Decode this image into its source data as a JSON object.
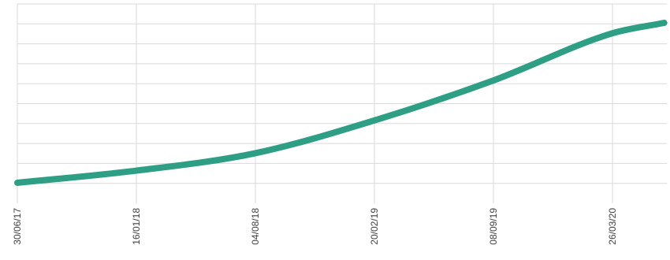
{
  "chart_data": {
    "type": "line",
    "title": "",
    "xlabel": "",
    "ylabel": "",
    "x_tick_labels": [
      "30/06/17",
      "16/01/18",
      "04/08/18",
      "20/02/19",
      "08/09/19",
      "26/03/20"
    ],
    "y_gridlines": 10,
    "grid": true,
    "legend": "none",
    "series": [
      {
        "color": "#2e9e84",
        "x": [
          "30/06/17",
          "16/01/18",
          "04/08/18",
          "20/02/19",
          "08/09/19",
          "26/03/20",
          "21/06/20"
        ],
        "values": [
          0.0,
          0.076,
          0.185,
          0.39,
          0.64,
          0.935,
          1.0
        ]
      }
    ]
  }
}
